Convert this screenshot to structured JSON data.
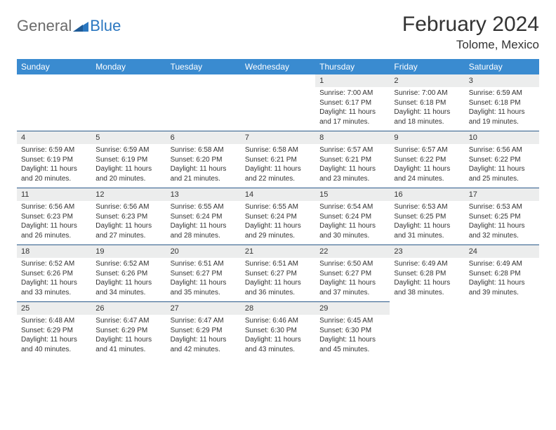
{
  "logo": {
    "general": "General",
    "blue": "Blue"
  },
  "title": "February 2024",
  "location": "Tolome, Mexico",
  "colors": {
    "header_bg": "#3a8bd0",
    "header_text": "#ffffff",
    "daynum_bg": "#eceded",
    "row_divider": "#2b5a8a",
    "text": "#333333",
    "logo_gray": "#6b6b6b",
    "logo_blue": "#2b77c0"
  },
  "days_of_week": [
    "Sunday",
    "Monday",
    "Tuesday",
    "Wednesday",
    "Thursday",
    "Friday",
    "Saturday"
  ],
  "weeks": [
    {
      "nums": [
        "",
        "",
        "",
        "",
        "1",
        "2",
        "3"
      ],
      "cells": [
        null,
        null,
        null,
        null,
        {
          "sunrise": "Sunrise: 7:00 AM",
          "sunset": "Sunset: 6:17 PM",
          "day1": "Daylight: 11 hours",
          "day2": "and 17 minutes."
        },
        {
          "sunrise": "Sunrise: 7:00 AM",
          "sunset": "Sunset: 6:18 PM",
          "day1": "Daylight: 11 hours",
          "day2": "and 18 minutes."
        },
        {
          "sunrise": "Sunrise: 6:59 AM",
          "sunset": "Sunset: 6:18 PM",
          "day1": "Daylight: 11 hours",
          "day2": "and 19 minutes."
        }
      ]
    },
    {
      "nums": [
        "4",
        "5",
        "6",
        "7",
        "8",
        "9",
        "10"
      ],
      "cells": [
        {
          "sunrise": "Sunrise: 6:59 AM",
          "sunset": "Sunset: 6:19 PM",
          "day1": "Daylight: 11 hours",
          "day2": "and 20 minutes."
        },
        {
          "sunrise": "Sunrise: 6:59 AM",
          "sunset": "Sunset: 6:19 PM",
          "day1": "Daylight: 11 hours",
          "day2": "and 20 minutes."
        },
        {
          "sunrise": "Sunrise: 6:58 AM",
          "sunset": "Sunset: 6:20 PM",
          "day1": "Daylight: 11 hours",
          "day2": "and 21 minutes."
        },
        {
          "sunrise": "Sunrise: 6:58 AM",
          "sunset": "Sunset: 6:21 PM",
          "day1": "Daylight: 11 hours",
          "day2": "and 22 minutes."
        },
        {
          "sunrise": "Sunrise: 6:57 AM",
          "sunset": "Sunset: 6:21 PM",
          "day1": "Daylight: 11 hours",
          "day2": "and 23 minutes."
        },
        {
          "sunrise": "Sunrise: 6:57 AM",
          "sunset": "Sunset: 6:22 PM",
          "day1": "Daylight: 11 hours",
          "day2": "and 24 minutes."
        },
        {
          "sunrise": "Sunrise: 6:56 AM",
          "sunset": "Sunset: 6:22 PM",
          "day1": "Daylight: 11 hours",
          "day2": "and 25 minutes."
        }
      ]
    },
    {
      "nums": [
        "11",
        "12",
        "13",
        "14",
        "15",
        "16",
        "17"
      ],
      "cells": [
        {
          "sunrise": "Sunrise: 6:56 AM",
          "sunset": "Sunset: 6:23 PM",
          "day1": "Daylight: 11 hours",
          "day2": "and 26 minutes."
        },
        {
          "sunrise": "Sunrise: 6:56 AM",
          "sunset": "Sunset: 6:23 PM",
          "day1": "Daylight: 11 hours",
          "day2": "and 27 minutes."
        },
        {
          "sunrise": "Sunrise: 6:55 AM",
          "sunset": "Sunset: 6:24 PM",
          "day1": "Daylight: 11 hours",
          "day2": "and 28 minutes."
        },
        {
          "sunrise": "Sunrise: 6:55 AM",
          "sunset": "Sunset: 6:24 PM",
          "day1": "Daylight: 11 hours",
          "day2": "and 29 minutes."
        },
        {
          "sunrise": "Sunrise: 6:54 AM",
          "sunset": "Sunset: 6:24 PM",
          "day1": "Daylight: 11 hours",
          "day2": "and 30 minutes."
        },
        {
          "sunrise": "Sunrise: 6:53 AM",
          "sunset": "Sunset: 6:25 PM",
          "day1": "Daylight: 11 hours",
          "day2": "and 31 minutes."
        },
        {
          "sunrise": "Sunrise: 6:53 AM",
          "sunset": "Sunset: 6:25 PM",
          "day1": "Daylight: 11 hours",
          "day2": "and 32 minutes."
        }
      ]
    },
    {
      "nums": [
        "18",
        "19",
        "20",
        "21",
        "22",
        "23",
        "24"
      ],
      "cells": [
        {
          "sunrise": "Sunrise: 6:52 AM",
          "sunset": "Sunset: 6:26 PM",
          "day1": "Daylight: 11 hours",
          "day2": "and 33 minutes."
        },
        {
          "sunrise": "Sunrise: 6:52 AM",
          "sunset": "Sunset: 6:26 PM",
          "day1": "Daylight: 11 hours",
          "day2": "and 34 minutes."
        },
        {
          "sunrise": "Sunrise: 6:51 AM",
          "sunset": "Sunset: 6:27 PM",
          "day1": "Daylight: 11 hours",
          "day2": "and 35 minutes."
        },
        {
          "sunrise": "Sunrise: 6:51 AM",
          "sunset": "Sunset: 6:27 PM",
          "day1": "Daylight: 11 hours",
          "day2": "and 36 minutes."
        },
        {
          "sunrise": "Sunrise: 6:50 AM",
          "sunset": "Sunset: 6:27 PM",
          "day1": "Daylight: 11 hours",
          "day2": "and 37 minutes."
        },
        {
          "sunrise": "Sunrise: 6:49 AM",
          "sunset": "Sunset: 6:28 PM",
          "day1": "Daylight: 11 hours",
          "day2": "and 38 minutes."
        },
        {
          "sunrise": "Sunrise: 6:49 AM",
          "sunset": "Sunset: 6:28 PM",
          "day1": "Daylight: 11 hours",
          "day2": "and 39 minutes."
        }
      ]
    },
    {
      "nums": [
        "25",
        "26",
        "27",
        "28",
        "29",
        "",
        ""
      ],
      "cells": [
        {
          "sunrise": "Sunrise: 6:48 AM",
          "sunset": "Sunset: 6:29 PM",
          "day1": "Daylight: 11 hours",
          "day2": "and 40 minutes."
        },
        {
          "sunrise": "Sunrise: 6:47 AM",
          "sunset": "Sunset: 6:29 PM",
          "day1": "Daylight: 11 hours",
          "day2": "and 41 minutes."
        },
        {
          "sunrise": "Sunrise: 6:47 AM",
          "sunset": "Sunset: 6:29 PM",
          "day1": "Daylight: 11 hours",
          "day2": "and 42 minutes."
        },
        {
          "sunrise": "Sunrise: 6:46 AM",
          "sunset": "Sunset: 6:30 PM",
          "day1": "Daylight: 11 hours",
          "day2": "and 43 minutes."
        },
        {
          "sunrise": "Sunrise: 6:45 AM",
          "sunset": "Sunset: 6:30 PM",
          "day1": "Daylight: 11 hours",
          "day2": "and 45 minutes."
        },
        null,
        null
      ]
    }
  ]
}
